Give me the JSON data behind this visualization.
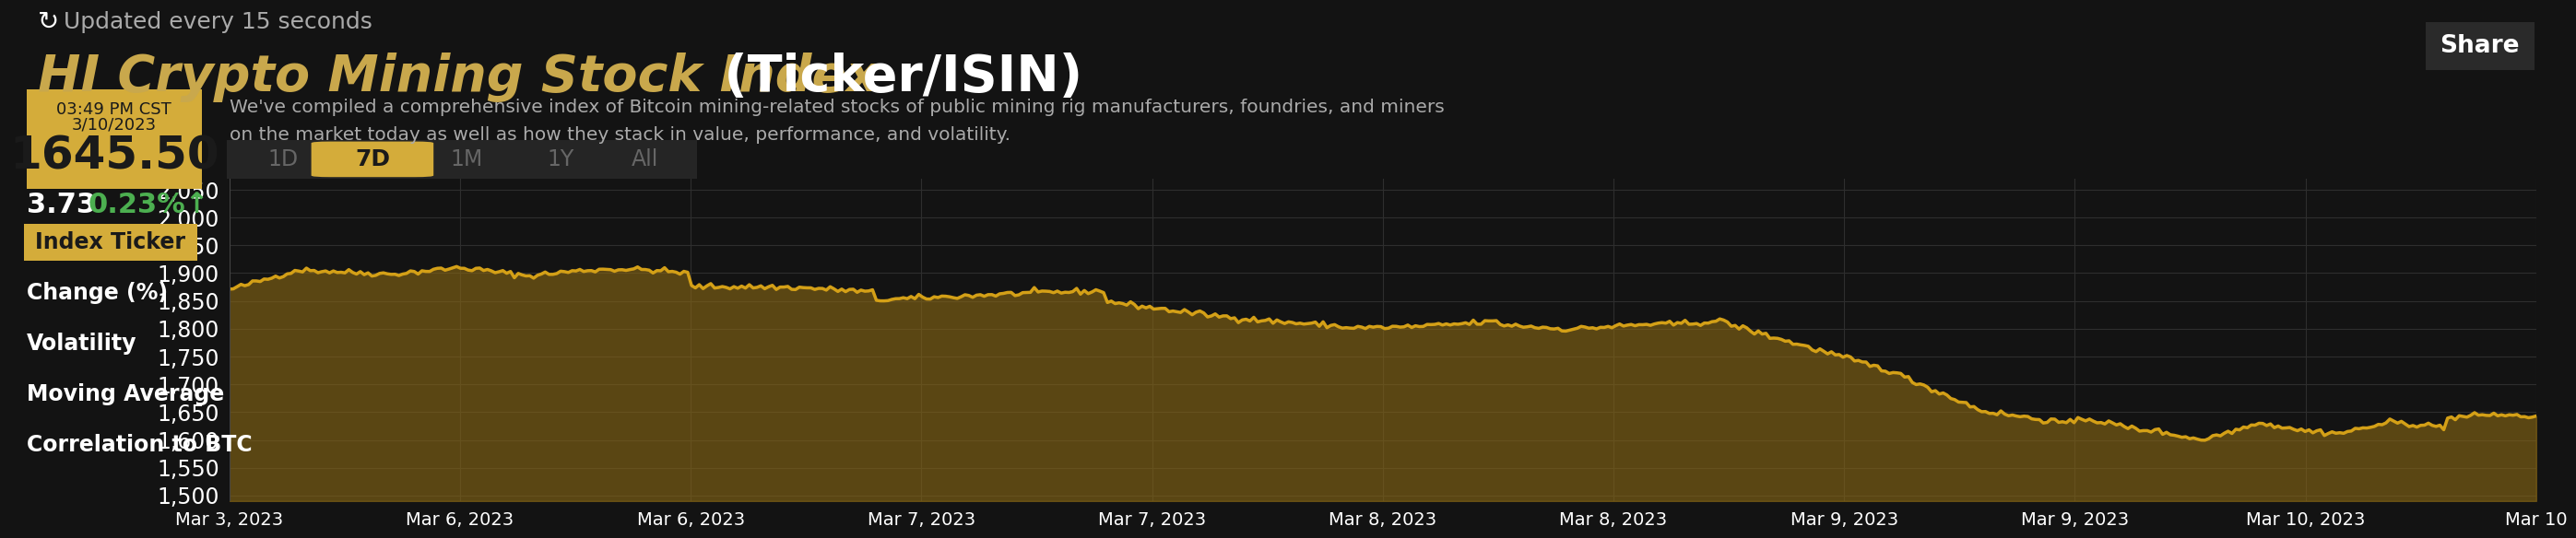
{
  "bg_color": "#131313",
  "title_gold": "HI Crypto Mining Stock Index",
  "title_white": " (Ticker/ISIN)",
  "update_text": "Updated every 15 seconds",
  "time_text": "03:49 PM CST",
  "date_text": "3/10/2023",
  "price_text": "1645.50",
  "change_val": "3.73",
  "pct_text": "0.23%↑",
  "description_line1": "We've compiled a comprehensive index of Bitcoin mining-related stocks of public mining rig manufacturers, foundries, and miners",
  "description_line2": "on the market today as well as how they stack in value, performance, and volatility.",
  "tab_labels": [
    "1D",
    "7D",
    "1M",
    "1Y",
    "All"
  ],
  "active_tab": "7D",
  "share_btn_text": "Share",
  "left_menu": [
    "Index Ticker",
    "Change (%)",
    "Volatility",
    "Moving Average",
    "Correlation to BTC"
  ],
  "active_menu": "Index Ticker",
  "yticks": [
    1500,
    1550,
    1600,
    1650,
    1700,
    1750,
    1800,
    1850,
    1900,
    1950,
    2000,
    2050
  ],
  "xtick_labels": [
    "Mar 3, 2023",
    "Mar 6, 2023",
    "Mar 6, 2023",
    "Mar 7, 2023",
    "Mar 7, 2023",
    "Mar 8, 2023",
    "Mar 8, 2023",
    "Mar 9, 2023",
    "Mar 9, 2023",
    "Mar 10, 2023",
    "Mar 10"
  ],
  "line_color": "#D4A017",
  "fill_color_top": "#8B6914",
  "fill_color_bot": "#2a1f05",
  "chart_bg": "#131313",
  "grid_color": "#2e2e2e",
  "gold_color": "#C9A84C",
  "box_gold": "#D4AC3A",
  "green_color": "#4CAF50",
  "white": "#ffffff",
  "light_gray": "#aaaaaa",
  "dark_text": "#1a1a1a",
  "tab_bg": "#252525",
  "tab_inactive_color": "#666666",
  "share_bg": "#2a2a2a",
  "share_border": "#555555",
  "menu_divider": "#2a2a2a"
}
